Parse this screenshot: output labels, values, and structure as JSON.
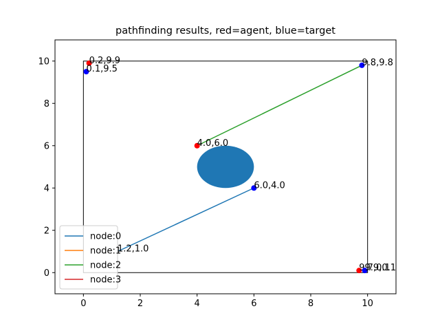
{
  "chart_data": {
    "type": "line",
    "title": "pathfinding results, red=agent, blue=target",
    "xlabel": "",
    "ylabel": "",
    "xlim": [
      -1,
      11
    ],
    "ylim": [
      -1,
      11
    ],
    "xticks": [
      0,
      2,
      4,
      6,
      8,
      10
    ],
    "yticks": [
      0,
      2,
      4,
      6,
      8,
      10
    ],
    "grid": false,
    "legend_position": "lower-left",
    "boundary_rect": {
      "x": [
        0,
        10
      ],
      "y": [
        0,
        10
      ],
      "color": "#000000"
    },
    "obstacle": {
      "shape": "ellipse",
      "cx": 5,
      "cy": 5,
      "rx": 1,
      "ry": 1,
      "color": "#1f77b4"
    },
    "series": [
      {
        "name": "node:0",
        "color": "#1f77b4",
        "points": [
          [
            1.2,
            1.0
          ],
          [
            6.0,
            4.0
          ]
        ]
      },
      {
        "name": "node:1",
        "color": "#ff7f0e",
        "points": []
      },
      {
        "name": "node:2",
        "color": "#2ca02c",
        "points": [
          [
            4.0,
            6.0
          ],
          [
            9.8,
            9.8
          ]
        ]
      },
      {
        "name": "node:3",
        "color": "#d62728",
        "points": []
      }
    ],
    "agents": [
      {
        "x": 0.2,
        "y": 9.9,
        "label": "0.2,9.9",
        "color": "#ff0000",
        "visible": true
      },
      {
        "x": 4.0,
        "y": 6.0,
        "label": "4.0,6.0",
        "color": "#ff0000",
        "visible": true
      },
      {
        "x": 1.2,
        "y": 1.0,
        "label": "1.2,1.0",
        "color": "#ff0000",
        "visible": false
      },
      {
        "x": 9.7,
        "y": 0.1,
        "label": "9.7,0.1",
        "color": "#ff0000",
        "visible": true
      }
    ],
    "targets": [
      {
        "x": 0.1,
        "y": 9.5,
        "label": "0.1,9.5",
        "color": "#0000ff",
        "visible": true
      },
      {
        "x": 9.8,
        "y": 9.8,
        "label": "9.8,9.8",
        "color": "#0000ff",
        "visible": true
      },
      {
        "x": 6.0,
        "y": 4.0,
        "label": "6.0,4.0",
        "color": "#0000ff",
        "visible": true
      },
      {
        "x": 9.9,
        "y": 0.1,
        "label": "9.9,0.1",
        "color": "#0000ff",
        "visible": true
      }
    ]
  }
}
